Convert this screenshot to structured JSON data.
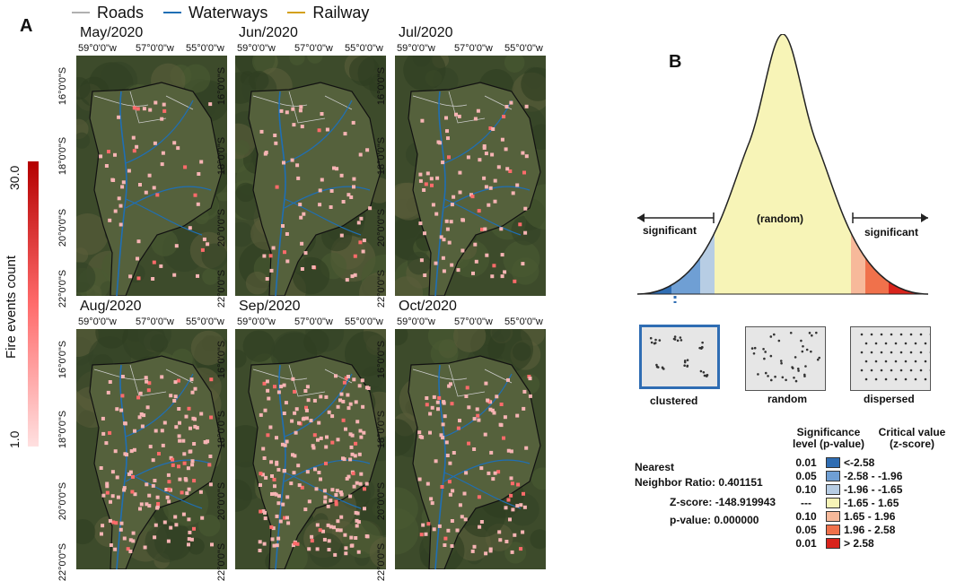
{
  "panel_a_letter": "A",
  "panel_b_letter": "B",
  "legend": [
    {
      "label": "Roads",
      "color": "#b0b0b0"
    },
    {
      "label": "Waterways",
      "color": "#1f6fb5"
    },
    {
      "label": "Railway",
      "color": "#d4a017"
    }
  ],
  "colorbar": {
    "title": "Fire events count",
    "max": "30.0",
    "min": "1.0"
  },
  "lon_ticks": [
    "59°0'0\"w",
    "57°0'0\"w",
    "55°0'0\"w"
  ],
  "lat_ticks": [
    "16°0'0\"S",
    "18°0'0\"S",
    "20°0'0\"S",
    "22°0'0\"S"
  ],
  "maps": [
    {
      "title": "May/2020",
      "fire_intensity": 0.2
    },
    {
      "title": "Jun/2020",
      "fire_intensity": 0.25
    },
    {
      "title": "Jul/2020",
      "fire_intensity": 0.4
    },
    {
      "title": "Aug/2020",
      "fire_intensity": 0.75
    },
    {
      "title": "Sep/2020",
      "fire_intensity": 1.0
    },
    {
      "title": "Oct/2020",
      "fire_intensity": 0.55
    }
  ],
  "curve": {
    "center_label": "(random)",
    "left_label": "significant",
    "right_label": "significant"
  },
  "patterns": [
    "clustered",
    "random",
    "dispersed"
  ],
  "stats": {
    "nearest": "Nearest",
    "ratio_label": "Neighbor Ratio:",
    "ratio_value": "0.401151",
    "z_label": "Z-score:",
    "z_value": "-148.919943",
    "p_label": "p-value:",
    "p_value": "0.000000"
  },
  "sig_table": {
    "header_p": "Significance level (p-value)",
    "header_z": "Critical value (z-score)",
    "rows": [
      {
        "p": "0.01",
        "z": "<-2.58",
        "color": "#2f6db3"
      },
      {
        "p": "0.05",
        "z": "-2.58 - -1.96",
        "color": "#6f9fd4"
      },
      {
        "p": "0.10",
        "z": "-1.96 - -1.65",
        "color": "#b7cde4"
      },
      {
        "p": "---",
        "z": "-1.65 - 1.65",
        "color": "#f7f4b7"
      },
      {
        "p": "0.10",
        "z": "1.65 - 1.96",
        "color": "#f7b99a"
      },
      {
        "p": "0.05",
        "z": "1.96 - 2.58",
        "color": "#f0714b"
      },
      {
        "p": "0.01",
        "z": "> 2.58",
        "color": "#d9241c"
      }
    ]
  }
}
